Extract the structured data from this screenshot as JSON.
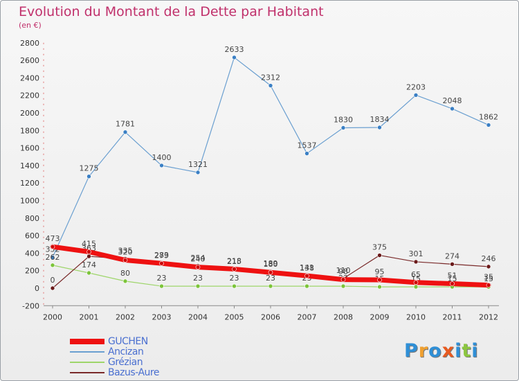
{
  "title": "Evolution du Montant de la Dette par Habitant",
  "subtitle": "(en €)",
  "brand": {
    "text": "Proxiti",
    "colors": [
      "#2f8fd6",
      "#f0a030",
      "#2f8fd6",
      "#e85a20",
      "#2f8fd6",
      "#8cc63f",
      "#2f8fd6"
    ]
  },
  "chart_data": {
    "type": "line",
    "x": [
      "2000",
      "2001",
      "2002",
      "2003",
      "2004",
      "2005",
      "2006",
      "2007",
      "2008",
      "2009",
      "2010",
      "2011",
      "2012"
    ],
    "ylim": [
      -200,
      2800
    ],
    "yticks": [
      -200,
      0,
      200,
      400,
      600,
      800,
      1000,
      1200,
      1400,
      1600,
      1800,
      2000,
      2200,
      2400,
      2600,
      2800
    ],
    "series": [
      {
        "name": "Ancizan",
        "color": "#6a9fd0",
        "marker": "#3a7fc4",
        "width": 1.2,
        "values": [
          352,
          1275,
          1781,
          1400,
          1321,
          2633,
          2312,
          1537,
          1830,
          1834,
          2203,
          2048,
          1862
        ],
        "labels": [
          "352",
          "1275",
          "1781",
          "1400",
          "1321",
          "2633",
          "2312",
          "1537",
          "1830",
          "1834",
          "2203",
          "2048",
          "1862"
        ]
      },
      {
        "name": "Grézian",
        "color": "#9ed56a",
        "marker": "#7cc43a",
        "width": 1.2,
        "values": [
          262,
          174,
          80,
          23,
          23,
          23,
          23,
          23,
          23,
          15,
          15,
          15,
          15
        ],
        "labels": [
          "262",
          "174",
          "80",
          "23",
          "23",
          "23",
          "23",
          "23",
          "23",
          "15",
          "15",
          "15",
          "15"
        ]
      },
      {
        "name": "Bazus-Aure",
        "color": "#7a2a2a",
        "marker": "#6a1a1a",
        "width": 1.2,
        "values": [
          0,
          363,
          335,
          279,
          254,
          215,
          189,
          138,
          110,
          375,
          301,
          274,
          246
        ],
        "labels": [
          "0",
          "363",
          "335",
          "279",
          "254",
          "215",
          "189",
          "138",
          "110",
          "375",
          "301",
          "274",
          "246"
        ]
      },
      {
        "name": "GUCHEN",
        "color": "#ee1111",
        "marker": "#cc0000",
        "width": 7,
        "values": [
          473,
          415,
          320,
          283,
          240,
          218,
          180,
          141,
          98,
          95,
          65,
          51,
          35
        ],
        "labels": [
          "473",
          "415",
          "320",
          "283",
          "240",
          "218",
          "180",
          "141",
          "98",
          "95",
          "65",
          "51",
          "35"
        ]
      }
    ],
    "legend_order": [
      "GUCHEN",
      "Ancizan",
      "Grézian",
      "Bazus-Aure"
    ],
    "grid": false,
    "legend_position": "bottom-left"
  }
}
